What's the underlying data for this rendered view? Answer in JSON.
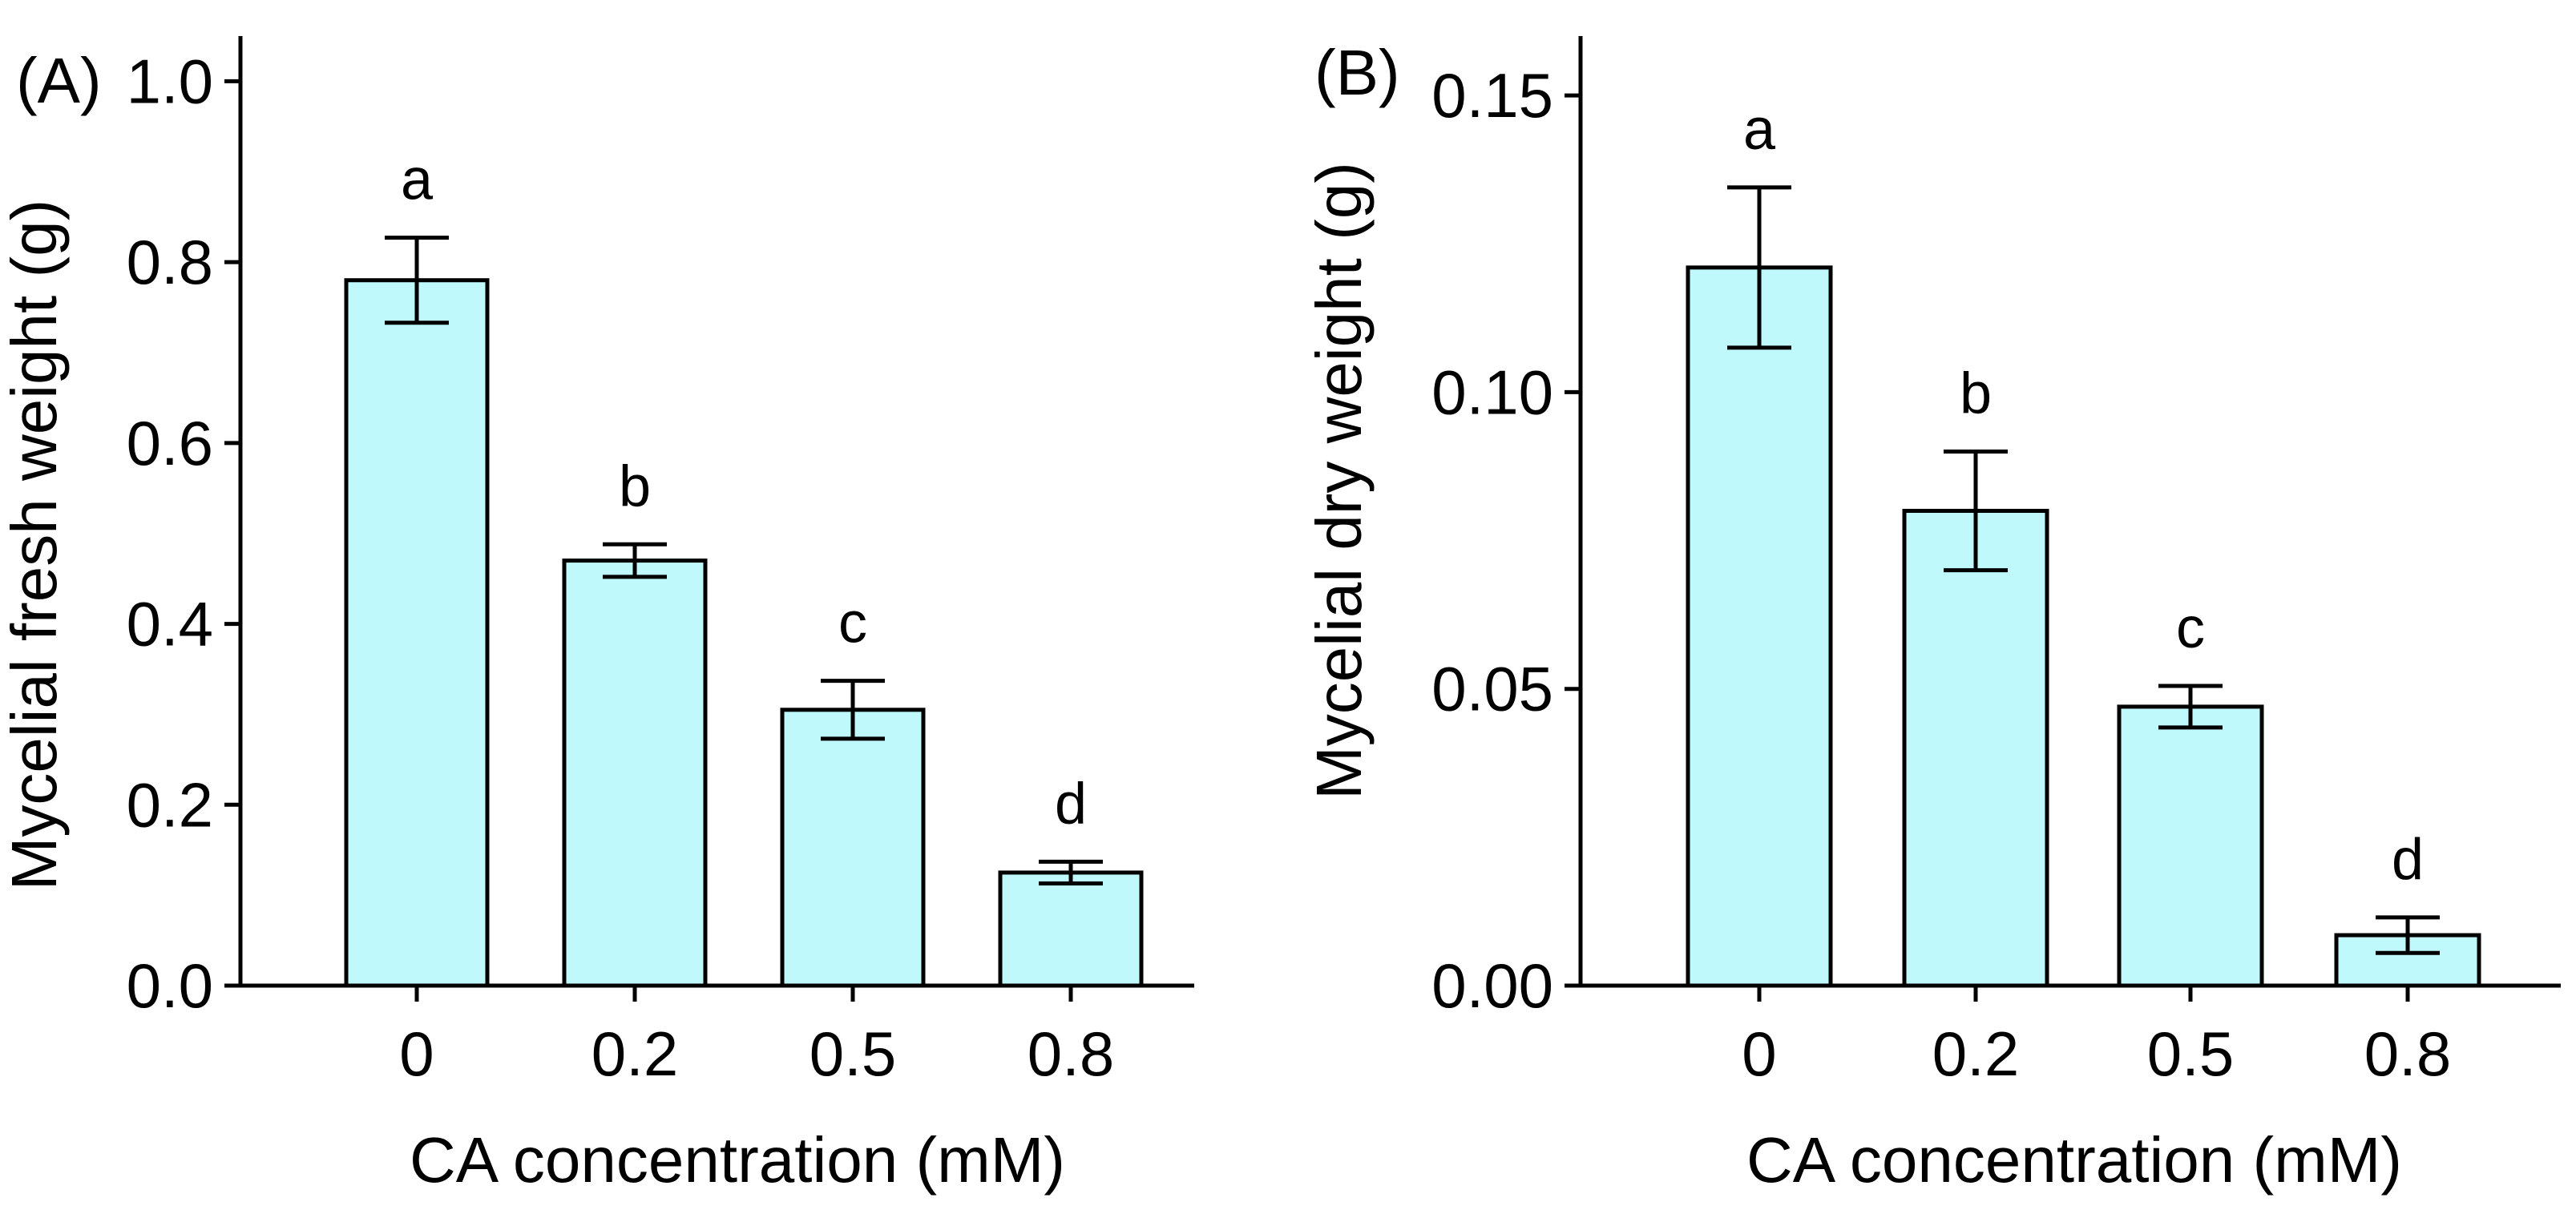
{
  "chart_data": [
    {
      "type": "bar",
      "panel_label": "(A)",
      "categories": [
        "0",
        "0.2",
        "0.5",
        "0.8"
      ],
      "values": [
        0.78,
        0.47,
        0.305,
        0.125
      ],
      "errors": [
        0.047,
        0.018,
        0.032,
        0.012
      ],
      "significance": [
        "a",
        "b",
        "c",
        "d"
      ],
      "xlabel": "CA concentration (mM)",
      "ylabel": "Mycelial fresh weight (g)",
      "ylim": [
        0,
        1.05
      ],
      "yticks": [
        0.0,
        0.2,
        0.4,
        0.6,
        0.8,
        1.0
      ],
      "ytick_labels": [
        "0.0",
        "0.2",
        "0.4",
        "0.6",
        "0.8",
        "1.0"
      ],
      "bar_color": "#bff9fb",
      "grid": false
    },
    {
      "type": "bar",
      "panel_label": "(B)",
      "categories": [
        "0",
        "0.2",
        "0.5",
        "0.8"
      ],
      "values": [
        0.121,
        0.08,
        0.047,
        0.0085
      ],
      "errors": [
        0.0135,
        0.01,
        0.0035,
        0.003
      ],
      "significance": [
        "a",
        "b",
        "c",
        "d"
      ],
      "xlabel": "CA concentration (mM)",
      "ylabel": "Mycelial dry weight (g)",
      "ylim": [
        0,
        0.16
      ],
      "yticks": [
        0.0,
        0.05,
        0.1,
        0.15
      ],
      "ytick_labels": [
        "0.00",
        "0.05",
        "0.10",
        "0.15"
      ],
      "bar_color": "#bff9fb",
      "grid": false
    }
  ]
}
